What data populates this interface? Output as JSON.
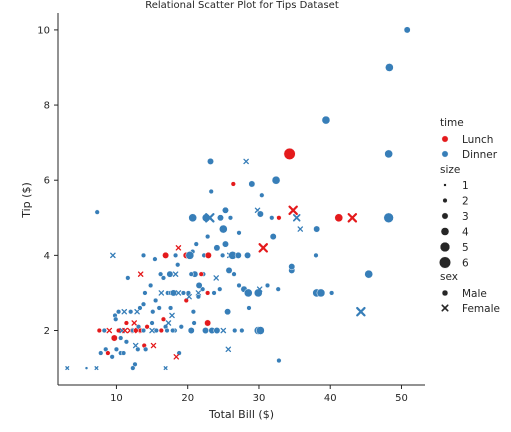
{
  "chart_data": {
    "type": "scatter",
    "title": "Relational Scatter Plot for Tips Dataset",
    "xlabel": "Total Bill ($)",
    "ylabel": "Tip ($)",
    "xlim": [
      1.8,
      53.3
    ],
    "ylim": [
      0.55,
      10.45
    ],
    "xticks": [
      10,
      20,
      30,
      40,
      50
    ],
    "yticks": [
      2,
      4,
      6,
      8,
      10
    ],
    "grid": false,
    "legend": {
      "placement": "right",
      "hue": {
        "title": "time",
        "entries": [
          {
            "label": "Lunch",
            "color": "#e41a1c"
          },
          {
            "label": "Dinner",
            "color": "#377eb8"
          }
        ]
      },
      "size": {
        "title": "size",
        "entries": [
          {
            "label": "1",
            "value": 1
          },
          {
            "label": "2",
            "value": 2
          },
          {
            "label": "3",
            "value": 3
          },
          {
            "label": "4",
            "value": 4
          },
          {
            "label": "5",
            "value": 5
          },
          {
            "label": "6",
            "value": 6
          }
        ]
      },
      "style": {
        "title": "sex",
        "entries": [
          {
            "label": "Male",
            "marker": "circle"
          },
          {
            "label": "Female",
            "marker": "x"
          }
        ]
      }
    },
    "points": [
      [
        50.8,
        10.0,
        "Dinner",
        "Male",
        3
      ],
      [
        48.3,
        9.0,
        "Dinner",
        "Male",
        4
      ],
      [
        39.4,
        7.6,
        "Dinner",
        "Male",
        4
      ],
      [
        48.2,
        6.7,
        "Dinner",
        "Male",
        4
      ],
      [
        34.3,
        6.7,
        "Lunch",
        "Male",
        6
      ],
      [
        23.2,
        6.5,
        "Dinner",
        "Male",
        3
      ],
      [
        28.2,
        6.5,
        "Dinner",
        "Female",
        2
      ],
      [
        32.4,
        6.0,
        "Dinner",
        "Male",
        4
      ],
      [
        26.4,
        5.9,
        "Lunch",
        "Male",
        2
      ],
      [
        29.0,
        5.9,
        "Dinner",
        "Male",
        3
      ],
      [
        23.3,
        5.7,
        "Dinner",
        "Male",
        2
      ],
      [
        30.4,
        5.6,
        "Dinner",
        "Male",
        2
      ],
      [
        25.3,
        5.2,
        "Dinner",
        "Male",
        3
      ],
      [
        29.8,
        5.2,
        "Dinner",
        "Female",
        2
      ],
      [
        34.8,
        5.2,
        "Lunch",
        "Female",
        4
      ],
      [
        7.3,
        5.15,
        "Dinner",
        "Male",
        2
      ],
      [
        24.6,
        5.0,
        "Dinner",
        "Male",
        3
      ],
      [
        26.0,
        5.0,
        "Dinner",
        "Male",
        2
      ],
      [
        20.7,
        5.0,
        "Dinner",
        "Male",
        4
      ],
      [
        22.6,
        5.0,
        "Dinner",
        "Male",
        4
      ],
      [
        23.1,
        5.0,
        "Dinner",
        "Female",
        4
      ],
      [
        30.2,
        5.1,
        "Dinner",
        "Male",
        3
      ],
      [
        31.8,
        5.0,
        "Dinner",
        "Male",
        2
      ],
      [
        32.8,
        5.0,
        "Lunch",
        "Male",
        2
      ],
      [
        35.3,
        5.0,
        "Dinner",
        "Female",
        3
      ],
      [
        41.2,
        5.0,
        "Lunch",
        "Male",
        4
      ],
      [
        43.1,
        5.0,
        "Lunch",
        "Female",
        4
      ],
      [
        48.2,
        5.0,
        "Dinner",
        "Male",
        5
      ],
      [
        38.1,
        4.7,
        "Dinner",
        "Male",
        3
      ],
      [
        35.8,
        4.7,
        "Dinner",
        "Female",
        2
      ],
      [
        25.0,
        4.7,
        "Dinner",
        "Male",
        4
      ],
      [
        22.8,
        4.5,
        "Dinner",
        "Male",
        2
      ],
      [
        27.2,
        4.6,
        "Dinner",
        "Male",
        2
      ],
      [
        32.0,
        4.5,
        "Dinner",
        "Male",
        3
      ],
      [
        25.3,
        4.3,
        "Dinner",
        "Male",
        3
      ],
      [
        24.1,
        4.2,
        "Dinner",
        "Male",
        3
      ],
      [
        30.6,
        4.2,
        "Lunch",
        "Female",
        4
      ],
      [
        20.7,
        4.1,
        "Dinner",
        "Male",
        2
      ],
      [
        18.7,
        4.2,
        "Lunch",
        "Female",
        2
      ],
      [
        21.2,
        4.3,
        "Dinner",
        "Male",
        2
      ],
      [
        9.5,
        4.0,
        "Dinner",
        "Female",
        2
      ],
      [
        13.8,
        4.0,
        "Dinner",
        "Male",
        2
      ],
      [
        16.9,
        4.0,
        "Lunch",
        "Male",
        3
      ],
      [
        18.3,
        4.0,
        "Dinner",
        "Male",
        2
      ],
      [
        19.8,
        4.0,
        "Lunch",
        "Male",
        3
      ],
      [
        20.3,
        4.0,
        "Dinner",
        "Male",
        4
      ],
      [
        22.3,
        4.0,
        "Dinner",
        "Male",
        2
      ],
      [
        22.9,
        4.0,
        "Lunch",
        "Male",
        3
      ],
      [
        24.9,
        4.0,
        "Dinner",
        "Male",
        2
      ],
      [
        25.9,
        4.0,
        "Dinner",
        "Female",
        2
      ],
      [
        26.3,
        4.0,
        "Dinner",
        "Male",
        4
      ],
      [
        27.1,
        4.0,
        "Dinner",
        "Male",
        3
      ],
      [
        28.4,
        4.0,
        "Dinner",
        "Male",
        3
      ],
      [
        38.0,
        4.0,
        "Dinner",
        "Male",
        2
      ],
      [
        15.4,
        3.9,
        "Dinner",
        "Male",
        2
      ],
      [
        18.6,
        3.75,
        "Dinner",
        "Male",
        2
      ],
      [
        17.5,
        3.5,
        "Dinner",
        "Male",
        3
      ],
      [
        18.3,
        3.5,
        "Dinner",
        "Female",
        2
      ],
      [
        21.0,
        3.5,
        "Dinner",
        "Male",
        3
      ],
      [
        20.5,
        3.5,
        "Dinner",
        "Male",
        2
      ],
      [
        22.2,
        3.5,
        "Dinner",
        "Male",
        2
      ],
      [
        21.9,
        3.5,
        "Lunch",
        "Male",
        2
      ],
      [
        16.2,
        3.5,
        "Dinner",
        "Male",
        2
      ],
      [
        16.6,
        3.4,
        "Dinner",
        "Male",
        2
      ],
      [
        13.4,
        3.5,
        "Lunch",
        "Female",
        2
      ],
      [
        11.6,
        3.4,
        "Dinner",
        "Male",
        2
      ],
      [
        24.0,
        3.4,
        "Dinner",
        "Female",
        2
      ],
      [
        25.8,
        3.6,
        "Dinner",
        "Male",
        3
      ],
      [
        26.5,
        3.5,
        "Dinner",
        "Male",
        2
      ],
      [
        34.6,
        3.6,
        "Dinner",
        "Male",
        3
      ],
      [
        34.6,
        3.7,
        "Dinner",
        "Male",
        3
      ],
      [
        45.4,
        3.5,
        "Dinner",
        "Male",
        4
      ],
      [
        27.2,
        3.2,
        "Dinner",
        "Male",
        2
      ],
      [
        27.9,
        3.1,
        "Dinner",
        "Male",
        3
      ],
      [
        31.2,
        3.2,
        "Dinner",
        "Male",
        2
      ],
      [
        32.7,
        3.1,
        "Dinner",
        "Male",
        2
      ],
      [
        29.9,
        3.0,
        "Dinner",
        "Male",
        4
      ],
      [
        28.5,
        3.0,
        "Dinner",
        "Male",
        4
      ],
      [
        30.1,
        3.1,
        "Dinner",
        "Female",
        2
      ],
      [
        38.1,
        3.0,
        "Dinner",
        "Male",
        4
      ],
      [
        38.7,
        3.0,
        "Dinner",
        "Male",
        4
      ],
      [
        40.2,
        3.0,
        "Dinner",
        "Male",
        2
      ],
      [
        17.2,
        3.0,
        "Dinner",
        "Male",
        2
      ],
      [
        16.3,
        3.0,
        "Dinner",
        "Female",
        2
      ],
      [
        17.6,
        3.0,
        "Dinner",
        "Male",
        2
      ],
      [
        18.0,
        3.0,
        "Dinner",
        "Male",
        3
      ],
      [
        18.7,
        3.0,
        "Dinner",
        "Female",
        2
      ],
      [
        19.4,
        3.0,
        "Dinner",
        "Male",
        2
      ],
      [
        20.1,
        3.0,
        "Dinner",
        "Male",
        2
      ],
      [
        21.5,
        3.0,
        "Dinner",
        "Female",
        2
      ],
      [
        22.8,
        3.0,
        "Lunch",
        "Male",
        2
      ],
      [
        19.8,
        2.8,
        "Lunch",
        "Male",
        2
      ],
      [
        23.7,
        3.0,
        "Dinner",
        "Male",
        2
      ],
      [
        22.1,
        3.1,
        "Dinner",
        "Male",
        2
      ],
      [
        21.6,
        3.2,
        "Dinner",
        "Male",
        3
      ],
      [
        24.5,
        3.1,
        "Dinner",
        "Male",
        2
      ],
      [
        20.2,
        2.9,
        "Dinner",
        "Female",
        2
      ],
      [
        21.5,
        2.9,
        "Dinner",
        "Male",
        2
      ],
      [
        14.0,
        3.0,
        "Dinner",
        "Male",
        2
      ],
      [
        14.8,
        3.2,
        "Dinner",
        "Male",
        2
      ],
      [
        15.5,
        2.8,
        "Dinner",
        "Male",
        2
      ],
      [
        13.8,
        2.7,
        "Dinner",
        "Male",
        2
      ],
      [
        12.9,
        2.5,
        "Dinner",
        "Female",
        2
      ],
      [
        13.3,
        2.6,
        "Dinner",
        "Male",
        2
      ],
      [
        15.1,
        2.5,
        "Dinner",
        "Male",
        2
      ],
      [
        16.0,
        2.6,
        "Dinner",
        "Male",
        2
      ],
      [
        17.6,
        2.6,
        "Dinner",
        "Male",
        2
      ],
      [
        11.1,
        2.5,
        "Dinner",
        "Female",
        2
      ],
      [
        12.0,
        2.5,
        "Dinner",
        "Male",
        2
      ],
      [
        10.3,
        2.5,
        "Dinner",
        "Male",
        2
      ],
      [
        9.8,
        2.4,
        "Dinner",
        "Male",
        2
      ],
      [
        16.6,
        2.3,
        "Lunch",
        "Male",
        2
      ],
      [
        17.8,
        2.4,
        "Dinner",
        "Female",
        2
      ],
      [
        20.8,
        2.5,
        "Dinner",
        "Male",
        2
      ],
      [
        25.6,
        2.5,
        "Dinner",
        "Male",
        3
      ],
      [
        28.6,
        2.6,
        "Dinner",
        "Male",
        2
      ],
      [
        44.3,
        2.5,
        "Dinner",
        "Female",
        4
      ],
      [
        9.9,
        2.3,
        "Dinner",
        "Male",
        2
      ],
      [
        11.4,
        2.2,
        "Lunch",
        "Male",
        2
      ],
      [
        12.5,
        2.2,
        "Lunch",
        "Female",
        2
      ],
      [
        13.1,
        2.1,
        "Dinner",
        "Male",
        2
      ],
      [
        14.3,
        2.1,
        "Lunch",
        "Male",
        2
      ],
      [
        15.0,
        2.2,
        "Dinner",
        "Male",
        2
      ],
      [
        16.9,
        2.1,
        "Dinner",
        "Male",
        2
      ],
      [
        17.3,
        2.2,
        "Dinner",
        "Female",
        2
      ],
      [
        18.2,
        2.0,
        "Dinner",
        "Male",
        2
      ],
      [
        19.1,
        2.1,
        "Dinner",
        "Male",
        2
      ],
      [
        20.9,
        2.2,
        "Dinner",
        "Male",
        2
      ],
      [
        22.8,
        2.2,
        "Lunch",
        "Male",
        3
      ],
      [
        7.6,
        2.0,
        "Lunch",
        "Male",
        2
      ],
      [
        8.3,
        2.0,
        "Dinner",
        "Male",
        2
      ],
      [
        9.0,
        2.0,
        "Lunch",
        "Female",
        2
      ],
      [
        10.3,
        2.0,
        "Lunch",
        "Male",
        2
      ],
      [
        10.8,
        2.0,
        "Dinner",
        "Female",
        2
      ],
      [
        11.2,
        2.0,
        "Lunch",
        "Female",
        2
      ],
      [
        11.9,
        2.0,
        "Lunch",
        "Female",
        2
      ],
      [
        12.3,
        2.0,
        "Dinner",
        "Male",
        2
      ],
      [
        12.7,
        2.0,
        "Lunch",
        "Male",
        2
      ],
      [
        13.0,
        2.0,
        "Lunch",
        "Female",
        2
      ],
      [
        13.4,
        2.0,
        "Lunch",
        "Male",
        2
      ],
      [
        13.8,
        2.0,
        "Dinner",
        "Male",
        2
      ],
      [
        15.0,
        2.0,
        "Dinner",
        "Female",
        2
      ],
      [
        15.6,
        2.0,
        "Dinner",
        "Male",
        2
      ],
      [
        16.3,
        2.0,
        "Lunch",
        "Male",
        2
      ],
      [
        17.1,
        2.0,
        "Dinner",
        "Male",
        2
      ],
      [
        17.9,
        2.0,
        "Dinner",
        "Male",
        2
      ],
      [
        20.5,
        2.0,
        "Dinner",
        "Male",
        3
      ],
      [
        22.5,
        2.0,
        "Dinner",
        "Male",
        3
      ],
      [
        23.4,
        2.0,
        "Dinner",
        "Male",
        3
      ],
      [
        24.1,
        2.0,
        "Dinner",
        "Male",
        3
      ],
      [
        25.0,
        2.0,
        "Dinner",
        "Female",
        2
      ],
      [
        26.6,
        2.0,
        "Dinner",
        "Male",
        2
      ],
      [
        27.6,
        2.0,
        "Dinner",
        "Male",
        2
      ],
      [
        29.9,
        2.0,
        "Dinner",
        "Male",
        4
      ],
      [
        30.2,
        2.0,
        "Dinner",
        "Male",
        4
      ],
      [
        10.6,
        1.8,
        "Dinner",
        "Male",
        2
      ],
      [
        11.4,
        1.7,
        "Dinner",
        "Male",
        2
      ],
      [
        9.7,
        1.8,
        "Lunch",
        "Male",
        3
      ],
      [
        12.7,
        1.6,
        "Dinner",
        "Female",
        2
      ],
      [
        13.9,
        1.6,
        "Lunch",
        "Male",
        2
      ],
      [
        15.2,
        1.6,
        "Lunch",
        "Female",
        2
      ],
      [
        14.1,
        1.5,
        "Dinner",
        "Male",
        2
      ],
      [
        13.0,
        1.5,
        "Dinner",
        "Male",
        2
      ],
      [
        10.0,
        1.5,
        "Dinner",
        "Male",
        2
      ],
      [
        8.5,
        1.5,
        "Dinner",
        "Male",
        2
      ],
      [
        7.8,
        1.4,
        "Dinner",
        "Male",
        2
      ],
      [
        8.8,
        1.4,
        "Lunch",
        "Male",
        2
      ],
      [
        10.6,
        1.4,
        "Dinner",
        "Male",
        2
      ],
      [
        11.0,
        1.4,
        "Dinner",
        "Male",
        2
      ],
      [
        9.4,
        1.3,
        "Dinner",
        "Male",
        2
      ],
      [
        18.8,
        1.4,
        "Dinner",
        "Male",
        2
      ],
      [
        18.4,
        1.3,
        "Lunch",
        "Female",
        2
      ],
      [
        25.7,
        1.5,
        "Dinner",
        "Female",
        2
      ],
      [
        12.6,
        1.1,
        "Dinner",
        "Male",
        2
      ],
      [
        16.9,
        1.0,
        "Dinner",
        "Female",
        1
      ],
      [
        12.3,
        1.0,
        "Dinner",
        "Male",
        2
      ],
      [
        32.8,
        1.2,
        "Dinner",
        "Male",
        2
      ],
      [
        3.1,
        1.0,
        "Dinner",
        "Female",
        1
      ],
      [
        5.8,
        1.0,
        "Dinner",
        "Male",
        1
      ],
      [
        7.2,
        1.0,
        "Dinner",
        "Female",
        1
      ]
    ]
  }
}
